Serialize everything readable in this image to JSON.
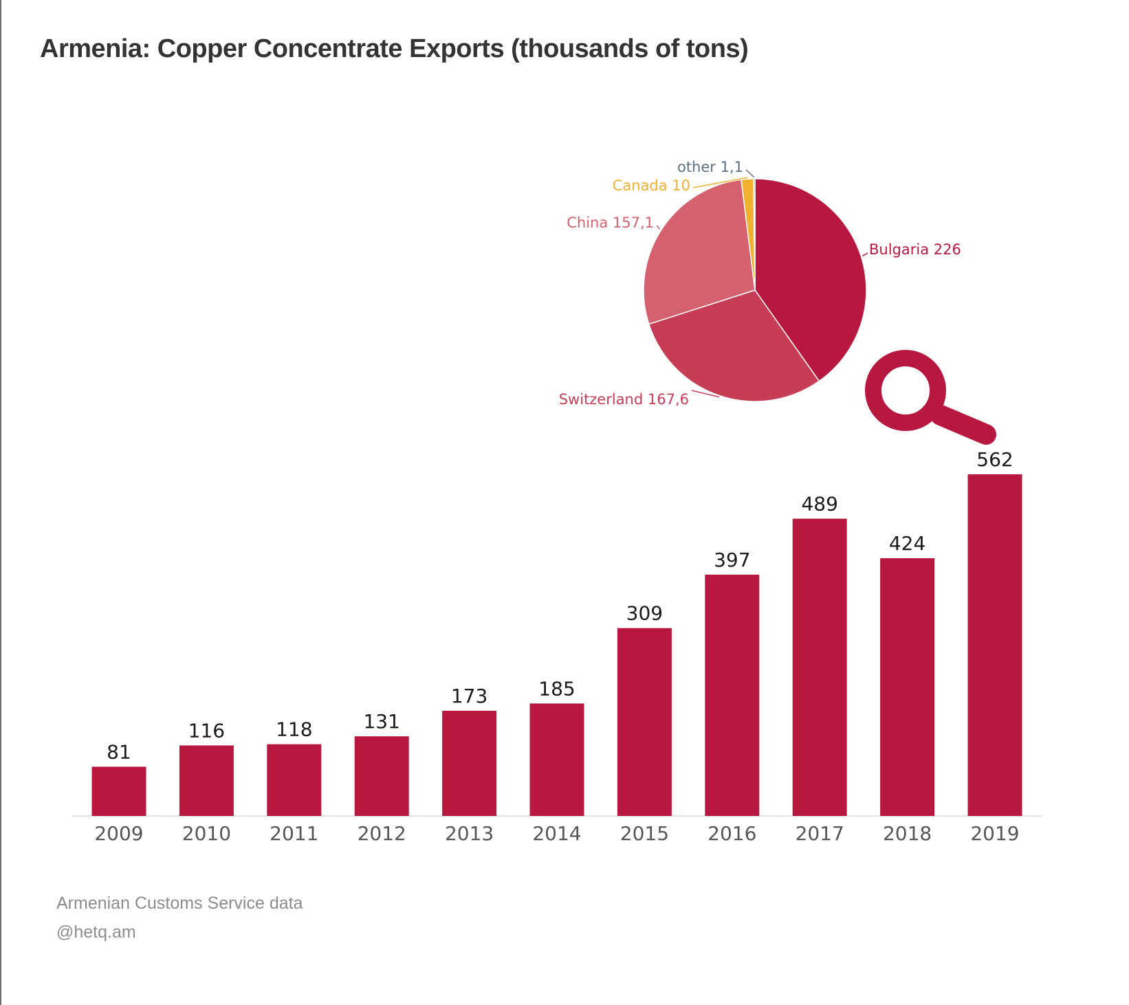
{
  "title": "Armenia: Copper Concentrate Exports (thousands of tons)",
  "footer": {
    "source": "Armenian Customs Service data",
    "handle": "@hetq.am"
  },
  "colors": {
    "bar": "#b8183f",
    "axis": "#e3e3e3",
    "label": "#1a1a1a",
    "tick": "#555555",
    "magnifier": "#b8183f"
  },
  "icons": [
    "magnifier-icon"
  ],
  "chart_data": [
    {
      "type": "bar",
      "categories": [
        "2009",
        "2010",
        "2011",
        "2012",
        "2013",
        "2014",
        "2015",
        "2016",
        "2017",
        "2018",
        "2019"
      ],
      "values": [
        81,
        116,
        118,
        131,
        173,
        185,
        309,
        397,
        489,
        424,
        562
      ],
      "data_labels": [
        "81",
        "116",
        "118",
        "131",
        "173",
        "185",
        "309",
        "397",
        "489",
        "424",
        "562"
      ],
      "ylim": [
        0,
        562
      ],
      "grid": false
    },
    {
      "type": "pie",
      "slices": [
        {
          "label": "Bulgaria 226",
          "value": 226,
          "color": "#b8183f"
        },
        {
          "label": "Switzerland 167,6",
          "value": 167.6,
          "color": "#c63d55"
        },
        {
          "label": "China 157,1",
          "value": 157.1,
          "color": "#d4616d"
        },
        {
          "label": "Canada 10",
          "value": 10,
          "color": "#f0b030"
        },
        {
          "label": "other 1,1",
          "value": 1.1,
          "color": "#5b7080"
        }
      ]
    }
  ]
}
